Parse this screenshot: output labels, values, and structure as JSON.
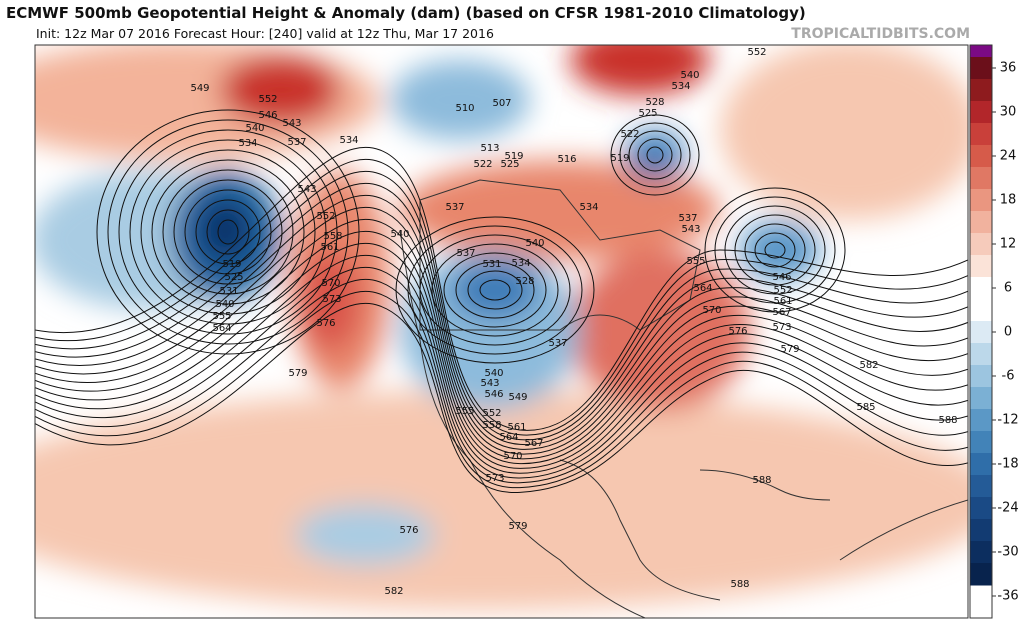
{
  "header": {
    "title": "ECMWF 500mb Geopotential Height & Anomaly (dam) (based on CFSR 1981-2010 Climatology)",
    "subtitle": "Init: 12z Mar 07 2016   Forecast Hour: [240]   valid at 12z Thu, Mar 17 2016",
    "site": "TROPICALTIDBITS.COM"
  },
  "colorbar": {
    "ticks": [
      36,
      30,
      24,
      18,
      12,
      6,
      0,
      -6,
      -12,
      -18,
      -24,
      -30,
      -36
    ]
  },
  "contour_labels": [
    "549",
    "552",
    "546",
    "543",
    "540",
    "537",
    "534",
    "534",
    "543",
    "552",
    "558",
    "561",
    "570",
    "573",
    "576",
    "579",
    "519",
    "525",
    "531",
    "540",
    "555",
    "564",
    "510",
    "507",
    "513",
    "519",
    "522",
    "525",
    "516",
    "519",
    "522",
    "525",
    "528",
    "534",
    "540",
    "552",
    "537",
    "531",
    "534",
    "528",
    "540",
    "537",
    "540",
    "543",
    "546",
    "549",
    "555",
    "552",
    "558",
    "561",
    "564",
    "567",
    "570",
    "573",
    "576",
    "579",
    "582",
    "537",
    "543",
    "555",
    "564",
    "570",
    "576",
    "579",
    "582",
    "585",
    "588",
    "588",
    "588",
    "546",
    "552",
    "561",
    "567",
    "573",
    "534",
    "537",
    "540"
  ]
}
